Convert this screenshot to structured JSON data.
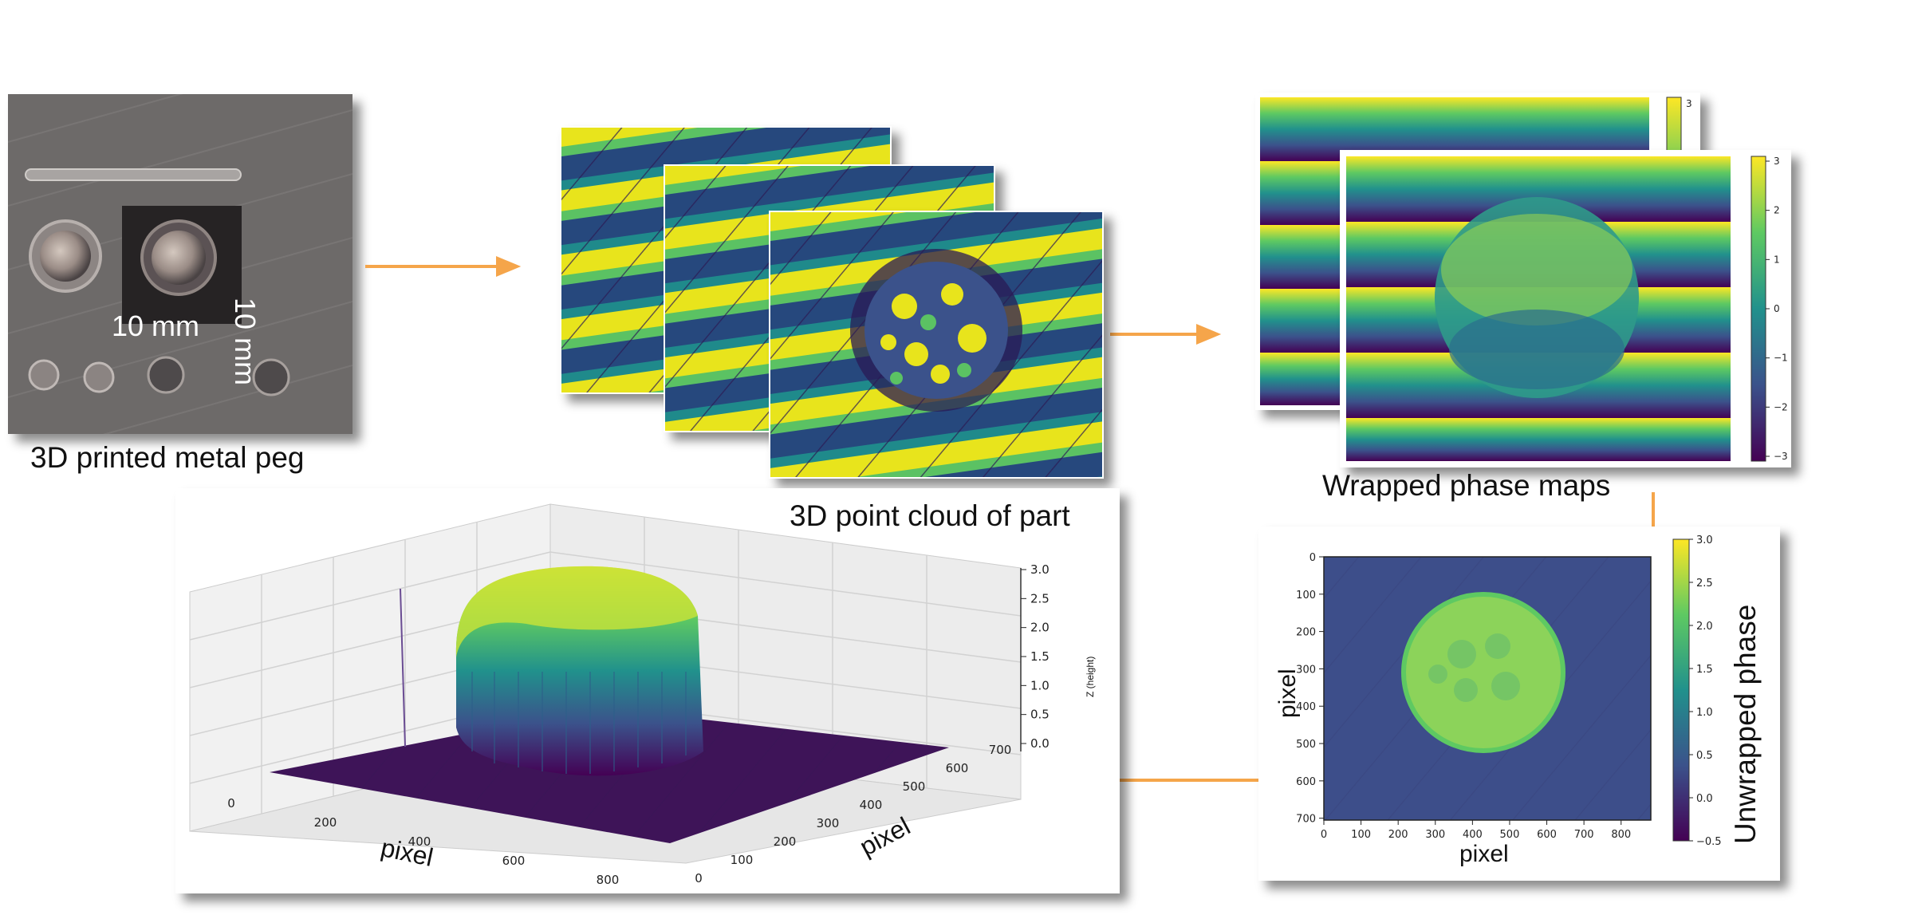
{
  "peg": {
    "caption": "3D printed metal peg",
    "dim_vertical": "10 mm",
    "dim_horizontal": "10 mm"
  },
  "wrapped": {
    "caption": "Wrapped phase maps",
    "colorbar_ticks": [
      "3",
      "2",
      "1",
      "0",
      "−1",
      "−2",
      "−3"
    ],
    "back_colorbar_ticks": [
      "3"
    ]
  },
  "unwrapped": {
    "ylabel": "pixel",
    "xlabel": "pixel",
    "colorbar_title": "Unwrapped phase",
    "xticks": [
      "0",
      "100",
      "200",
      "300",
      "400",
      "500",
      "600",
      "700",
      "800"
    ],
    "yticks": [
      "0",
      "100",
      "200",
      "300",
      "400",
      "500",
      "600",
      "700"
    ],
    "colorbar_ticks": [
      "3.0",
      "2.5",
      "2.0",
      "1.5",
      "1.0",
      "0.5",
      "0.0",
      "−0.5"
    ]
  },
  "pointcloud": {
    "title": "3D point cloud of part",
    "xlabel": "pixel",
    "ylabel": "pixel",
    "zlabel": "Z (height)",
    "xticks": [
      "0",
      "200",
      "400",
      "600",
      "800"
    ],
    "yticks": [
      "0",
      "100",
      "200",
      "300",
      "400",
      "500",
      "600",
      "700"
    ],
    "zticks": [
      "3.0",
      "2.5",
      "2.0",
      "1.5",
      "1.0",
      "0.5",
      "0.0"
    ]
  },
  "colors": {
    "arrow": "#f5a54a",
    "viridis_dark": "#440154",
    "viridis_blue": "#3b528b",
    "viridis_teal": "#21918c",
    "viridis_green": "#5ec962",
    "viridis_yellow": "#fde725"
  }
}
